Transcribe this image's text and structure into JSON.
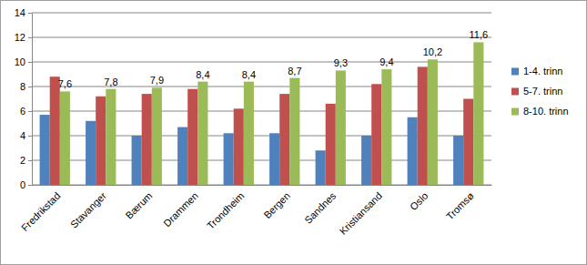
{
  "chart_data": {
    "type": "bar",
    "categories": [
      "Fredrikstad",
      "Stavanger",
      "Bærum",
      "Drammen",
      "Trondheim",
      "Bergen",
      "Sandnes",
      "Kristiansand",
      "Oslo",
      "Tromsø"
    ],
    "series": [
      {
        "name": "1-4. trinn",
        "color": "#4f81bd",
        "values": [
          5.7,
          5.2,
          4.0,
          4.7,
          4.2,
          4.2,
          2.8,
          4.0,
          5.5,
          4.0
        ]
      },
      {
        "name": "5-7. trinn",
        "color": "#c0504d",
        "values": [
          8.8,
          7.2,
          7.4,
          7.8,
          6.2,
          7.4,
          6.6,
          8.2,
          9.6,
          7.0
        ]
      },
      {
        "name": "8-10. trinn",
        "color": "#9bbb59",
        "values": [
          7.6,
          7.8,
          7.9,
          8.4,
          8.4,
          8.7,
          9.3,
          9.4,
          10.2,
          11.6
        ],
        "data_labels": true,
        "value_labels": [
          "7,6",
          "7,8",
          "7,9",
          "8,4",
          "8,4",
          "8,7",
          "9,3",
          "9,4",
          "10,2",
          "11,6"
        ]
      }
    ],
    "ylim": [
      0,
      14
    ],
    "yticks": [
      0,
      2,
      4,
      6,
      8,
      10,
      12,
      14
    ],
    "grid": true,
    "legend": "right"
  }
}
